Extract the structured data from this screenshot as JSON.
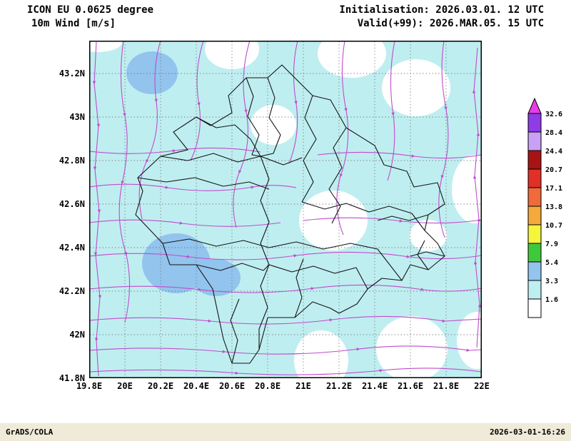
{
  "header": {
    "line1": "ICON EU 0.0625 degree",
    "line2": "10m Wind [m/s]",
    "init_line": "Initialisation: 2026.03.01. 12 UTC",
    "valid_line": "Valid(+99): 2026.MAR.05. 15 UTC"
  },
  "footer": {
    "credit": "GrADS/COLA",
    "timestamp": "2026-03-01-16:26"
  },
  "chart_data": {
    "type": "heatmap",
    "title": "10m Wind [m/s]",
    "model": "ICON EU 0.0625 degree",
    "initialisation": "2026.03.01. 12 UTC",
    "valid_time": "2026.MAR.05. 15 UTC",
    "forecast_offset": "+99",
    "x_axis": {
      "ticks": [
        "19.8E",
        "20E",
        "20.2E",
        "20.4E",
        "20.6E",
        "20.8E",
        "21E",
        "21.2E",
        "21.4E",
        "21.6E",
        "21.8E",
        "22E"
      ],
      "range": [
        19.8,
        22.0
      ]
    },
    "y_axis": {
      "ticks": [
        "43.2N",
        "43N",
        "42.8N",
        "42.6N",
        "42.4N",
        "42.2N",
        "42N",
        "41.8N"
      ],
      "range": [
        41.8,
        43.35
      ]
    },
    "grid": true,
    "colorbar": {
      "unit": "m/s",
      "levels": [
        1.6,
        3.3,
        5.4,
        7.9,
        10.7,
        13.8,
        17.1,
        20.7,
        24.4,
        28.4,
        32.6
      ],
      "segment_colors": [
        "#ffffff",
        "#bfeef0",
        "#92c4ee",
        "#40c83c",
        "#f5f53c",
        "#f5a83c",
        "#f06a3c",
        "#e03028",
        "#a81414",
        "#c8a0f5",
        "#8f3ce8"
      ],
      "above_color": "#e83ce8"
    },
    "streamline_color": "#c04ccc"
  }
}
